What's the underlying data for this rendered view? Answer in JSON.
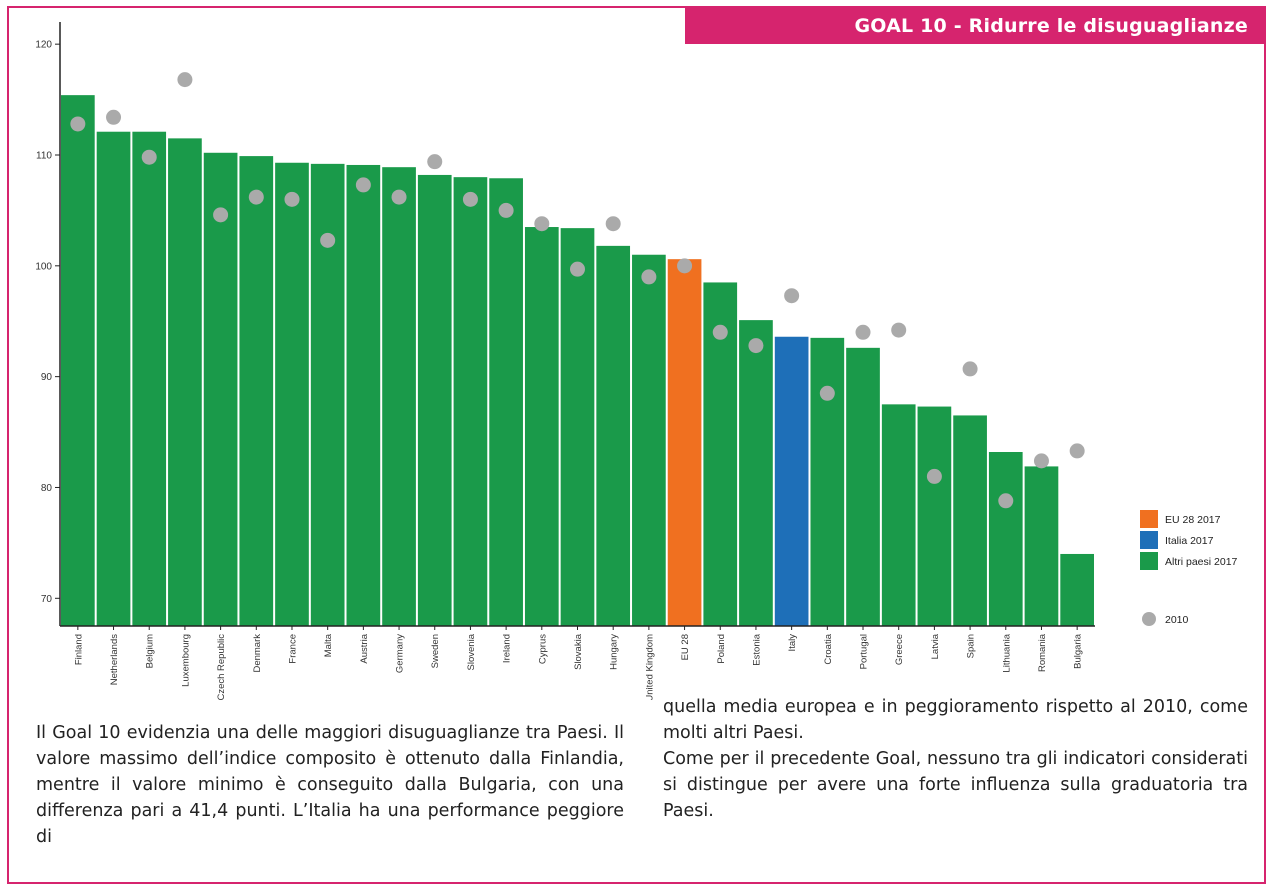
{
  "header": {
    "goal_title": "GOAL 10 - Ridurre le disuguaglianze"
  },
  "colors": {
    "accent": "#d6246e",
    "eu": "#f07020",
    "italia": "#1e6fb8",
    "altri": "#1a9a4a",
    "dot": "#aaaaaa"
  },
  "chart_data": {
    "type": "bar",
    "categories": [
      "Finland",
      "Netherlands",
      "Belgium",
      "Luxembourg",
      "Czech Republic",
      "Denmark",
      "France",
      "Malta",
      "Austria",
      "Germany",
      "Sweden",
      "Slovenia",
      "Ireland",
      "Cyprus",
      "Slovakia",
      "Hungary",
      "United Kingdom",
      "EU 28",
      "Poland",
      "Estonia",
      "Italy",
      "Croatia",
      "Portugal",
      "Greece",
      "Latvia",
      "Spain",
      "Lithuania",
      "Romania",
      "Bulgaria"
    ],
    "series": [
      {
        "name": "EU 28 2017 / Italia 2017 / Altri paesi 2017",
        "type": "bar",
        "values": [
          115.4,
          112.1,
          112.1,
          111.5,
          110.2,
          109.9,
          109.3,
          109.2,
          109.1,
          108.9,
          108.2,
          108.0,
          107.9,
          103.5,
          103.4,
          101.8,
          101.0,
          100.6,
          98.5,
          95.1,
          93.6,
          93.5,
          92.6,
          87.5,
          87.3,
          86.5,
          83.2,
          81.9,
          74.0
        ],
        "groups": [
          "altri",
          "altri",
          "altri",
          "altri",
          "altri",
          "altri",
          "altri",
          "altri",
          "altri",
          "altri",
          "altri",
          "altri",
          "altri",
          "altri",
          "altri",
          "altri",
          "altri",
          "eu",
          "altri",
          "altri",
          "italia",
          "altri",
          "altri",
          "altri",
          "altri",
          "altri",
          "altri",
          "altri",
          "altri"
        ]
      },
      {
        "name": "2010",
        "type": "scatter",
        "values": [
          112.8,
          113.4,
          109.8,
          116.8,
          104.6,
          106.2,
          106.0,
          102.3,
          107.3,
          106.2,
          109.4,
          106.0,
          105.0,
          103.8,
          99.7,
          103.8,
          99.0,
          100.0,
          94.0,
          92.8,
          97.3,
          88.5,
          94.0,
          94.2,
          81.0,
          90.7,
          78.8,
          82.4,
          83.3
        ]
      }
    ],
    "ylim": [
      67.5,
      122
    ],
    "yticks": [
      70,
      80,
      90,
      100,
      110,
      120
    ],
    "ytick_labels": [
      "70",
      "80",
      "90",
      "100",
      "110",
      "120"
    ],
    "legend": {
      "placement": "right",
      "items": [
        {
          "label": "EU 28 2017",
          "color": "#f07020",
          "shape": "square"
        },
        {
          "label": "Italia 2017",
          "color": "#1e6fb8",
          "shape": "square"
        },
        {
          "label": "Altri paesi 2017",
          "color": "#1a9a4a",
          "shape": "square"
        },
        {
          "label": "2010",
          "color": "#aaaaaa",
          "shape": "circle"
        }
      ]
    }
  },
  "body": {
    "left": "Il Goal 10 evidenzia una delle maggiori disuguaglianze tra Paesi. Il valore massimo dell’indice composito è ottenuto dalla Finlandia, mentre il valore minimo è conseguito dalla Bulgaria, con una differenza pari a 41,4 punti. L’Italia ha una performance peggiore di",
    "right_p1": "quella media europea e in peggioramento rispetto al 2010, come molti altri Paesi.",
    "right_p2": "Come per il precedente Goal, nessuno tra gli indicatori considerati si distingue per avere una forte influenza sulla graduatoria tra Paesi."
  }
}
